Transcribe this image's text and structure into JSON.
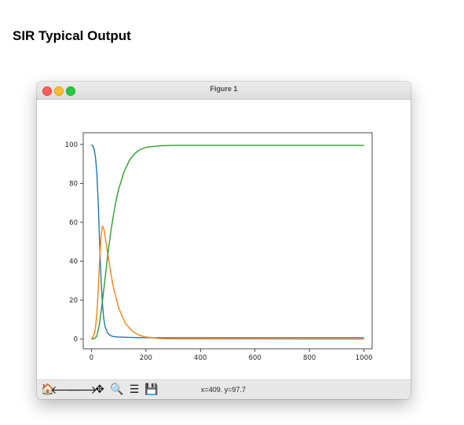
{
  "page": {
    "title": "SIR Typical Output"
  },
  "window": {
    "title": "Figure 1"
  },
  "toolbar": {
    "buttons": [
      {
        "name": "home-icon",
        "glyph": "🏠"
      },
      {
        "name": "back-arrow-icon",
        "glyph": "🡐"
      },
      {
        "name": "forward-arrow-icon",
        "glyph": "🡒"
      },
      {
        "name": "pan-icon",
        "glyph": "✥"
      },
      {
        "name": "zoom-icon",
        "glyph": "🔍"
      },
      {
        "name": "configure-subplots-icon",
        "glyph": "☰"
      },
      {
        "name": "save-icon",
        "glyph": "💾"
      }
    ],
    "coords": "x=409. y=97.7"
  },
  "chart_data": {
    "type": "line",
    "title": "",
    "xlabel": "",
    "ylabel": "",
    "xlim": [
      -30,
      1030
    ],
    "ylim": [
      -5,
      106
    ],
    "xticks": [
      0,
      200,
      400,
      600,
      800,
      1000
    ],
    "yticks": [
      0,
      20,
      40,
      60,
      80,
      100
    ],
    "grid": false,
    "legend": "none",
    "series": [
      {
        "color": "#1f77b4",
        "x": [
          0,
          5,
          10,
          15,
          20,
          25,
          30,
          35,
          40,
          45,
          50,
          60,
          70,
          80,
          100,
          150,
          200,
          1000
        ],
        "y": [
          99.9,
          99.2,
          97.5,
          93.5,
          85.0,
          70.0,
          50.0,
          32.0,
          19.0,
          11.0,
          6.5,
          3.0,
          1.8,
          1.3,
          1.0,
          0.8,
          0.7,
          0.7
        ]
      },
      {
        "color": "#ff7f0e",
        "x": [
          0,
          5,
          10,
          15,
          20,
          25,
          30,
          35,
          40,
          45,
          50,
          60,
          70,
          80,
          100,
          125,
          150,
          175,
          200,
          250,
          300,
          1000
        ],
        "y": [
          0.1,
          0.8,
          2.4,
          6.0,
          13.0,
          25.0,
          40.0,
          52.0,
          58.0,
          57.0,
          53.0,
          44.0,
          35.0,
          27.0,
          16.0,
          8.0,
          4.0,
          2.0,
          1.0,
          0.3,
          0.1,
          0.0
        ]
      },
      {
        "color": "#2ca02c",
        "x": [
          0,
          10,
          20,
          30,
          40,
          50,
          60,
          70,
          80,
          90,
          100,
          120,
          140,
          160,
          180,
          200,
          250,
          300,
          1000
        ],
        "y": [
          0.0,
          0.2,
          1.5,
          8.0,
          19.0,
          31.0,
          43.0,
          54.0,
          63.0,
          71.0,
          77.0,
          86.0,
          92.0,
          95.5,
          97.5,
          98.5,
          99.3,
          99.5,
          99.5
        ]
      }
    ]
  }
}
